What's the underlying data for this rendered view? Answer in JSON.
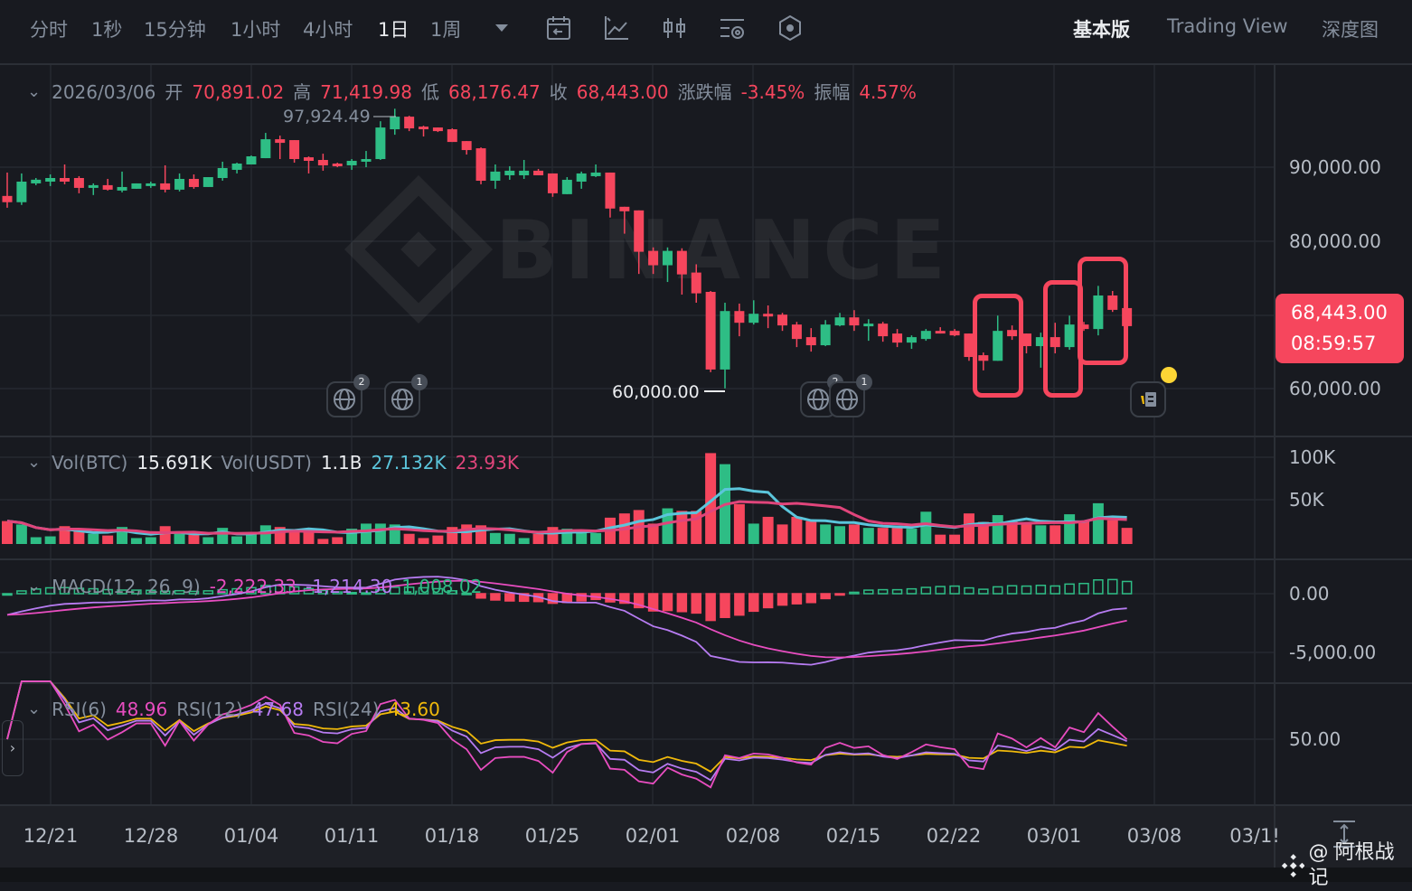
{
  "toolbar": {
    "intervals": [
      "分时",
      "1秒",
      "15分钟",
      "1小时",
      "4小时",
      "1日",
      "1周"
    ],
    "active_interval": "1日",
    "views": [
      "基本版",
      "Trading View",
      "深度图"
    ],
    "active_view": "基本版",
    "icons": [
      "dropdown-icon",
      "calendar-icon",
      "indicator-icon",
      "candle-type-icon",
      "settings-icon",
      "hexagon-icon"
    ]
  },
  "info": {
    "date": "2026/03/06",
    "open_label": "开",
    "open": "70,891.02",
    "high_label": "高",
    "high": "71,419.98",
    "low_label": "低",
    "low": "68,176.47",
    "close_label": "收",
    "close": "68,443.00",
    "change_label": "涨跌幅",
    "change": "-3.45%",
    "amplitude_label": "振幅",
    "amplitude": "4.57%"
  },
  "volume_legend": {
    "btc_label": "Vol(BTC)",
    "btc": "15.691K",
    "usdt_label": "Vol(USDT)",
    "usdt": "1.1B",
    "ma1": "27.132K",
    "ma2": "23.93K"
  },
  "macd_legend": {
    "label": "MACD(12, 26, 9)",
    "v1": "-2,222.33",
    "v2": "-1,214.30",
    "v3": "1,008.02"
  },
  "rsi_legend": {
    "l1": "RSI(6)",
    "v1": "48.96",
    "l2": "RSI(12)",
    "v2": "47.68",
    "l3": "RSI(24)",
    "v3": "43.60"
  },
  "axes": {
    "price_ticks": [
      "90,000.00",
      "80,000.00",
      "60,000.00"
    ],
    "volume_ticks": [
      "100K",
      "50K"
    ],
    "macd_ticks": [
      "0.00",
      "-5,000.00"
    ],
    "rsi_ticks": [
      "50.00"
    ],
    "dates": [
      "12/21",
      "12/28",
      "01/04",
      "01/11",
      "01/18",
      "01/25",
      "02/01",
      "02/08",
      "02/15",
      "02/22",
      "03/01",
      "03/08",
      "03/1!"
    ]
  },
  "last_price": {
    "price": "68,443.00",
    "countdown": "08:59:57"
  },
  "markers": {
    "high": "97,924.49",
    "low": "60,000.00"
  },
  "events": [
    {
      "count": "2"
    },
    {
      "count": "1"
    },
    {
      "count": "2"
    },
    {
      "count": "1"
    }
  ],
  "watermark": {
    "brand": "BINANCE",
    "credit": "@ 阿根战记"
  },
  "colors": {
    "up": "#2ebd85",
    "down": "#f6465d",
    "ma_fast": "#5bc5db",
    "ma_slow": "#e0457b",
    "dif": "#b77cf2",
    "dea": "#e84dc0",
    "rsi6": "#e84dc0",
    "rsi12": "#b77cf2",
    "rsi24": "#f0b90b",
    "highlight": "#f6465d"
  },
  "chart_data": {
    "type": "candlestick",
    "symbol_interval": "1日",
    "ylim": [
      60000,
      98000
    ],
    "x": [
      "12/18",
      "12/19",
      "12/20",
      "12/21",
      "12/22",
      "12/23",
      "12/24",
      "12/25",
      "12/26",
      "12/27",
      "12/28",
      "12/29",
      "12/30",
      "12/31",
      "01/01",
      "01/02",
      "01/03",
      "01/04",
      "01/05",
      "01/06",
      "01/07",
      "01/08",
      "01/09",
      "01/10",
      "01/11",
      "01/12",
      "01/13",
      "01/14",
      "01/15",
      "01/16",
      "01/17",
      "01/18",
      "01/19",
      "01/20",
      "01/21",
      "01/22",
      "01/23",
      "01/24",
      "01/25",
      "01/26",
      "01/27",
      "01/28",
      "01/29",
      "01/30",
      "01/31",
      "02/01",
      "02/02",
      "02/03",
      "02/04",
      "02/05",
      "02/06",
      "02/07",
      "02/08",
      "02/09",
      "02/10",
      "02/11",
      "02/12",
      "02/13",
      "02/14",
      "02/15",
      "02/16",
      "02/17",
      "02/18",
      "02/19",
      "02/20",
      "02/21",
      "02/22",
      "02/23",
      "02/24",
      "02/25",
      "02/26",
      "02/27",
      "02/28",
      "03/01",
      "03/02",
      "03/03",
      "03/04",
      "03/05",
      "03/06"
    ],
    "ohlc": [
      [
        86100,
        89270,
        84500,
        85250
      ],
      [
        85250,
        89150,
        84880,
        88040
      ],
      [
        87800,
        88530,
        87560,
        88300
      ],
      [
        88040,
        89020,
        87440,
        88530
      ],
      [
        88530,
        90370,
        87680,
        88040
      ],
      [
        88530,
        88780,
        86460,
        87190
      ],
      [
        87190,
        87800,
        86220,
        87560
      ],
      [
        87560,
        88410,
        86830,
        86950
      ],
      [
        86830,
        89400,
        86580,
        87310
      ],
      [
        87070,
        87800,
        87070,
        87800
      ],
      [
        87440,
        88040,
        87190,
        87800
      ],
      [
        87800,
        90250,
        86580,
        86950
      ],
      [
        86950,
        89150,
        86710,
        88410
      ],
      [
        88410,
        89020,
        87070,
        87310
      ],
      [
        87310,
        88650,
        87310,
        88650
      ],
      [
        88530,
        90740,
        88170,
        89880
      ],
      [
        89640,
        90610,
        89150,
        90490
      ],
      [
        90370,
        91590,
        90370,
        91470
      ],
      [
        91220,
        94650,
        91220,
        93790
      ],
      [
        93790,
        94280,
        91100,
        93300
      ],
      [
        93670,
        93670,
        90610,
        91100
      ],
      [
        91340,
        91460,
        89150,
        90860
      ],
      [
        90980,
        91830,
        89520,
        90250
      ],
      [
        90490,
        90610,
        90000,
        90120
      ],
      [
        90250,
        91100,
        89640,
        90860
      ],
      [
        90740,
        92200,
        90000,
        91100
      ],
      [
        91100,
        96230,
        90980,
        95380
      ],
      [
        95140,
        97924.49,
        94400,
        96850
      ],
      [
        96850,
        96970,
        94890,
        95260
      ],
      [
        95500,
        95620,
        94160,
        95140
      ],
      [
        95380,
        95380,
        94770,
        94890
      ],
      [
        95140,
        95260,
        93420,
        93420
      ],
      [
        93540,
        93540,
        91710,
        92320
      ],
      [
        92560,
        92680,
        87680,
        88160
      ],
      [
        88160,
        90370,
        87070,
        89400
      ],
      [
        88900,
        90130,
        88290,
        89520
      ],
      [
        88900,
        90980,
        88410,
        89520
      ],
      [
        89520,
        89760,
        88900,
        88900
      ],
      [
        89150,
        89150,
        85980,
        86460
      ],
      [
        86340,
        88650,
        86340,
        88290
      ],
      [
        88040,
        89400,
        87070,
        89150
      ],
      [
        88780,
        90370,
        88660,
        89270
      ],
      [
        89270,
        89270,
        83170,
        84390
      ],
      [
        84630,
        84630,
        80980,
        84020
      ],
      [
        84140,
        84140,
        75520,
        78530
      ],
      [
        78650,
        79120,
        75520,
        76700
      ],
      [
        76700,
        79120,
        74430,
        78650
      ],
      [
        78650,
        79000,
        72720,
        75460
      ],
      [
        75710,
        76830,
        71620,
        72890
      ],
      [
        73090,
        73210,
        62200,
        62560
      ],
      [
        62560,
        71620,
        60000,
        70490
      ],
      [
        70490,
        71500,
        67070,
        68900
      ],
      [
        68900,
        71950,
        68660,
        70120
      ],
      [
        70120,
        71250,
        68170,
        69750
      ],
      [
        70000,
        70240,
        67800,
        68540
      ],
      [
        68660,
        69020,
        65600,
        66700
      ],
      [
        66950,
        68170,
        64990,
        65850
      ],
      [
        65850,
        69260,
        65730,
        68660
      ],
      [
        68540,
        70240,
        68420,
        69630
      ],
      [
        69630,
        70610,
        67800,
        68540
      ],
      [
        68420,
        69380,
        66460,
        68780
      ],
      [
        68780,
        69020,
        66330,
        67070
      ],
      [
        67440,
        68050,
        65600,
        66210
      ],
      [
        66210,
        67190,
        65360,
        66950
      ],
      [
        66700,
        68050,
        66460,
        67800
      ],
      [
        67800,
        68300,
        67440,
        67440
      ],
      [
        67800,
        68050,
        67070,
        67190
      ],
      [
        67440,
        67440,
        63740,
        64260
      ],
      [
        64500,
        64870,
        62440,
        63740
      ],
      [
        63740,
        69870,
        63740,
        67800
      ],
      [
        67920,
        68540,
        66580,
        67070
      ],
      [
        67440,
        67440,
        64750,
        65730
      ],
      [
        65730,
        67560,
        62810,
        66950
      ],
      [
        66950,
        68900,
        64750,
        65600
      ],
      [
        65600,
        69870,
        65240,
        68660
      ],
      [
        68660,
        69020,
        67800,
        68050
      ],
      [
        68050,
        73900,
        67190,
        72600
      ],
      [
        72600,
        73210,
        70370,
        70650
      ],
      [
        70891.02,
        71419.98,
        68176.47,
        68443.0
      ]
    ],
    "volume_k": [
      27,
      23,
      8,
      9,
      21,
      17,
      12,
      10,
      20,
      7,
      8,
      21,
      12,
      11,
      8,
      19,
      9,
      12,
      22,
      20,
      17,
      18,
      6,
      8,
      18,
      24,
      24,
      23,
      12,
      7,
      10,
      20,
      23,
      22,
      13,
      12,
      7,
      12,
      20,
      18,
      13,
      13,
      31,
      36,
      40,
      24,
      42,
      39,
      39,
      107,
      94,
      47,
      24,
      32,
      23,
      32,
      27,
      23,
      21,
      23,
      19,
      19,
      19,
      18,
      38,
      11,
      11,
      36,
      26,
      34,
      27,
      25,
      22,
      22,
      35,
      27,
      48,
      28,
      19
    ],
    "highlighted_ranges": [
      [
        "02/23",
        "02/25"
      ],
      [
        "02/28",
        "03/02"
      ],
      [
        "03/03",
        "03/05"
      ]
    ]
  }
}
